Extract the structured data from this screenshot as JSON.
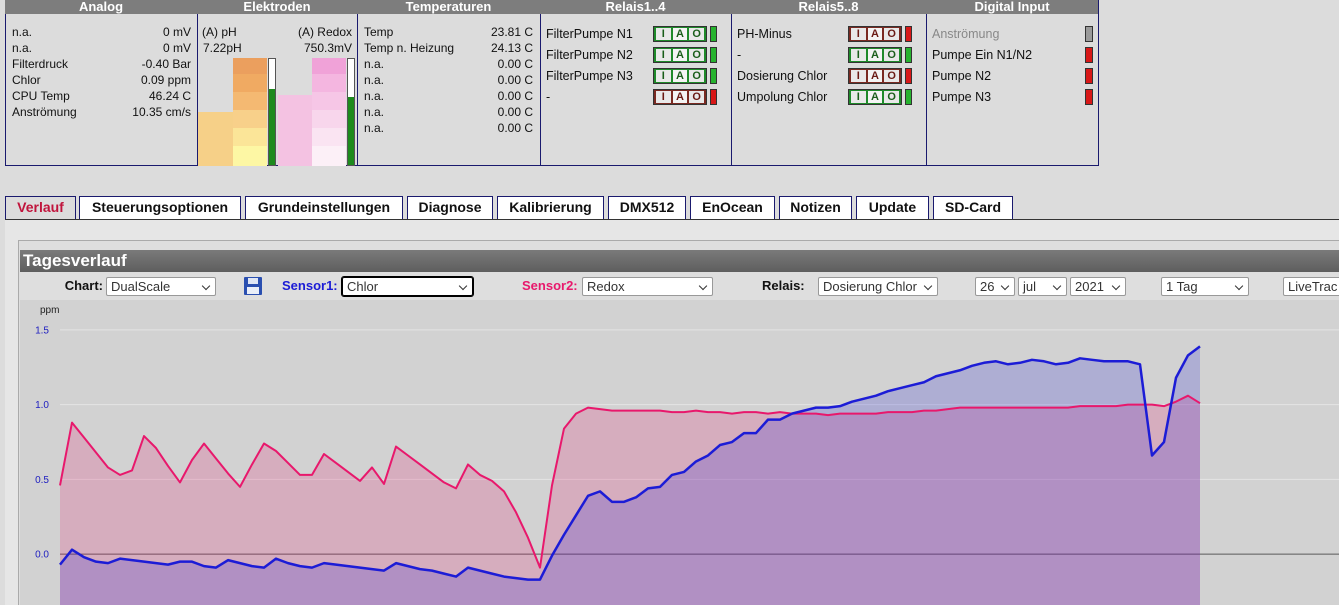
{
  "status_panel": {
    "headers": [
      "Analog",
      "Elektroden",
      "Temperaturen",
      "Relais1..4",
      "Relais5..8",
      "Digital Input"
    ],
    "analog": [
      {
        "label": "n.a.",
        "value": "0 mV"
      },
      {
        "label": "n.a.",
        "value": "0 mV"
      },
      {
        "label": "Filterdruck",
        "value": "-0.40 Bar"
      },
      {
        "label": "Chlor",
        "value": "0.09 ppm"
      },
      {
        "label": "CPU Temp",
        "value": "46.24 C"
      },
      {
        "label": "Anströmung",
        "value": "10.35 cm/s"
      }
    ],
    "electrodes": {
      "ph_label": "(A) pH",
      "redox_label": "(A) Redox",
      "ph_value": "7.22pH",
      "redox_value": "750.3mV"
    },
    "temperatures": [
      {
        "label": "Temp",
        "value": "23.81 C"
      },
      {
        "label": "Temp n. Heizung",
        "value": "24.13 C"
      },
      {
        "label": "n.a.",
        "value": "0.00 C"
      },
      {
        "label": "n.a.",
        "value": "0.00 C"
      },
      {
        "label": "n.a.",
        "value": "0.00 C"
      },
      {
        "label": "n.a.",
        "value": "0.00 C"
      },
      {
        "label": "n.a.",
        "value": "0.00 C"
      }
    ],
    "relais_1_4": [
      "FilterPumpe N1",
      "FilterPumpe N2",
      "FilterPumpe N3",
      "-"
    ],
    "relais_5_8": [
      "PH-Minus",
      "-",
      "Dosierung Chlor",
      "Umpolung Chlor"
    ],
    "relay_buttons": [
      "I",
      "A",
      "O"
    ],
    "digital_input": [
      "Anströmung",
      "Pumpe Ein N1/N2",
      "Pumpe N2",
      "Pumpe N3"
    ]
  },
  "tabs": [
    "Verlauf",
    "Steuerungsoptionen",
    "Grundeinstellungen",
    "Diagnose",
    "Kalibrierung",
    "DMX512",
    "EnOcean",
    "Notizen",
    "Update",
    "SD-Card"
  ],
  "panel": {
    "title": "Tagesverlauf",
    "controls": {
      "chart_label": "Chart:",
      "chart": "DualScale",
      "sensor1_label": "Sensor1:",
      "sensor2_label": "Sensor2:",
      "relais_label": "Relais:",
      "relais": "Dosierung Chlor",
      "day": "26",
      "month": "jul",
      "year": "2021",
      "range": "1 Tag",
      "mode": "LiveTrac"
    }
  },
  "chart_data": {
    "type": "line",
    "ylabel": "ppm",
    "ylim": [
      -0.34,
      1.7
    ],
    "yticks": [
      {
        "value": 0,
        "label": "0.0"
      },
      0.5,
      {
        "value": 1,
        "label": "1.0"
      },
      1.5
    ],
    "grid": true,
    "series": [
      {
        "name": "Chlor",
        "color": "#1c1cd6",
        "values": [
          -0.07,
          0.03,
          -0.02,
          -0.05,
          -0.06,
          -0.03,
          -0.04,
          -0.05,
          -0.06,
          -0.07,
          -0.05,
          -0.05,
          -0.08,
          -0.09,
          -0.04,
          -0.06,
          -0.08,
          -0.09,
          -0.03,
          -0.06,
          -0.08,
          -0.09,
          -0.06,
          -0.07,
          -0.08,
          -0.09,
          -0.1,
          -0.11,
          -0.06,
          -0.08,
          -0.1,
          -0.11,
          -0.13,
          -0.15,
          -0.09,
          -0.11,
          -0.13,
          -0.15,
          -0.16,
          -0.17,
          -0.17,
          -0.01,
          0.13,
          0.26,
          0.39,
          0.42,
          0.35,
          0.35,
          0.38,
          0.44,
          0.45,
          0.53,
          0.55,
          0.62,
          0.66,
          0.73,
          0.75,
          0.81,
          0.81,
          0.9,
          0.9,
          0.94,
          0.96,
          0.98,
          0.98,
          0.99,
          1.02,
          1.04,
          1.06,
          1.09,
          1.11,
          1.13,
          1.15,
          1.19,
          1.21,
          1.23,
          1.26,
          1.28,
          1.29,
          1.27,
          1.28,
          1.3,
          1.29,
          1.27,
          1.28,
          1.31,
          1.3,
          1.29,
          1.29,
          1.29,
          1.27,
          0.66,
          0.75,
          1.18,
          1.33,
          1.39
        ]
      },
      {
        "name": "Redox",
        "color": "#e8186c",
        "values": [
          0.46,
          0.88,
          0.78,
          0.68,
          0.58,
          0.53,
          0.56,
          0.79,
          0.71,
          0.59,
          0.48,
          0.63,
          0.74,
          0.64,
          0.54,
          0.45,
          0.6,
          0.74,
          0.69,
          0.61,
          0.53,
          0.53,
          0.67,
          0.61,
          0.55,
          0.49,
          0.58,
          0.47,
          0.72,
          0.66,
          0.6,
          0.54,
          0.48,
          0.44,
          0.6,
          0.53,
          0.49,
          0.42,
          0.28,
          0.11,
          -0.09,
          0.46,
          0.84,
          0.94,
          0.98,
          0.97,
          0.96,
          0.96,
          0.96,
          0.96,
          0.96,
          0.95,
          0.95,
          0.96,
          0.95,
          0.95,
          0.94,
          0.95,
          0.95,
          0.94,
          0.95,
          0.94,
          0.94,
          0.94,
          0.93,
          0.94,
          0.94,
          0.94,
          0.94,
          0.95,
          0.95,
          0.95,
          0.96,
          0.96,
          0.97,
          0.98,
          0.98,
          0.98,
          0.98,
          0.98,
          0.98,
          0.98,
          0.98,
          0.98,
          0.98,
          0.99,
          0.99,
          0.99,
          0.99,
          1.0,
          1.0,
          1.0,
          0.99,
          1.02,
          1.06,
          1.01
        ]
      }
    ]
  }
}
